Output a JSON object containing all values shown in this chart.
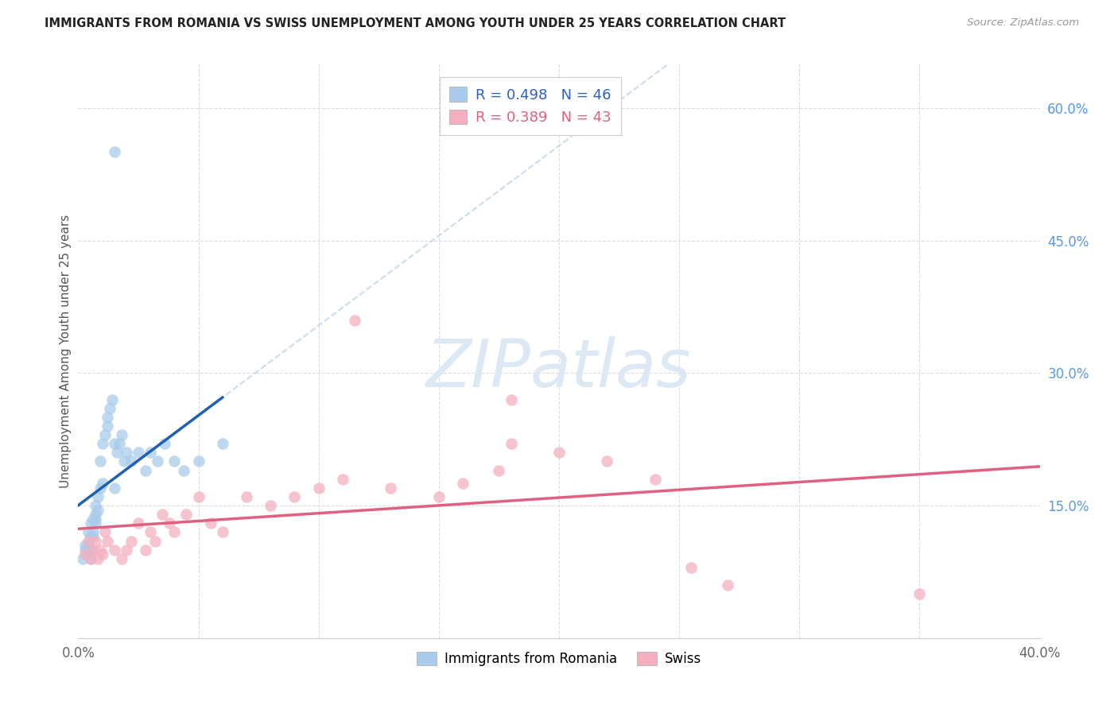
{
  "title": "IMMIGRANTS FROM ROMANIA VS SWISS UNEMPLOYMENT AMONG YOUTH UNDER 25 YEARS CORRELATION CHART",
  "source": "Source: ZipAtlas.com",
  "ylabel": "Unemployment Among Youth under 25 years",
  "legend_label1": "Immigrants from Romania",
  "legend_label2": "Swiss",
  "R1": 0.498,
  "N1": 46,
  "R2": 0.389,
  "N2": 43,
  "xlim": [
    0.0,
    0.4
  ],
  "ylim": [
    0.0,
    0.65
  ],
  "color_blue": "#a8ccea",
  "color_pink": "#f4b0c0",
  "line_blue": "#2060b0",
  "line_pink": "#e06080",
  "line_blue_dashed": "#b8cce4",
  "background_color": "#ffffff",
  "blue_points_x": [
    0.002,
    0.003,
    0.003,
    0.004,
    0.004,
    0.004,
    0.005,
    0.005,
    0.005,
    0.005,
    0.006,
    0.006,
    0.006,
    0.007,
    0.007,
    0.007,
    0.007,
    0.008,
    0.008,
    0.009,
    0.009,
    0.01,
    0.01,
    0.011,
    0.012,
    0.012,
    0.013,
    0.014,
    0.015,
    0.015,
    0.016,
    0.017,
    0.018,
    0.019,
    0.02,
    0.022,
    0.025,
    0.028,
    0.03,
    0.033,
    0.036,
    0.04,
    0.044,
    0.05,
    0.06,
    0.015
  ],
  "blue_points_y": [
    0.09,
    0.1,
    0.105,
    0.1,
    0.105,
    0.12,
    0.09,
    0.1,
    0.115,
    0.13,
    0.115,
    0.12,
    0.135,
    0.13,
    0.135,
    0.14,
    0.15,
    0.145,
    0.16,
    0.17,
    0.2,
    0.175,
    0.22,
    0.23,
    0.24,
    0.25,
    0.26,
    0.27,
    0.22,
    0.17,
    0.21,
    0.22,
    0.23,
    0.2,
    0.21,
    0.2,
    0.21,
    0.19,
    0.21,
    0.2,
    0.22,
    0.2,
    0.19,
    0.2,
    0.22,
    0.55
  ],
  "pink_points_x": [
    0.003,
    0.004,
    0.005,
    0.006,
    0.007,
    0.008,
    0.009,
    0.01,
    0.011,
    0.012,
    0.015,
    0.018,
    0.02,
    0.022,
    0.025,
    0.028,
    0.03,
    0.032,
    0.035,
    0.038,
    0.04,
    0.045,
    0.05,
    0.055,
    0.06,
    0.07,
    0.08,
    0.09,
    0.1,
    0.11,
    0.115,
    0.13,
    0.15,
    0.16,
    0.175,
    0.18,
    0.2,
    0.22,
    0.24,
    0.255,
    0.27,
    0.35,
    0.18
  ],
  "pink_points_y": [
    0.095,
    0.11,
    0.09,
    0.1,
    0.11,
    0.09,
    0.1,
    0.095,
    0.12,
    0.11,
    0.1,
    0.09,
    0.1,
    0.11,
    0.13,
    0.1,
    0.12,
    0.11,
    0.14,
    0.13,
    0.12,
    0.14,
    0.16,
    0.13,
    0.12,
    0.16,
    0.15,
    0.16,
    0.17,
    0.18,
    0.36,
    0.17,
    0.16,
    0.175,
    0.19,
    0.22,
    0.21,
    0.2,
    0.18,
    0.08,
    0.06,
    0.05,
    0.27
  ],
  "watermark": "ZIPatlas"
}
